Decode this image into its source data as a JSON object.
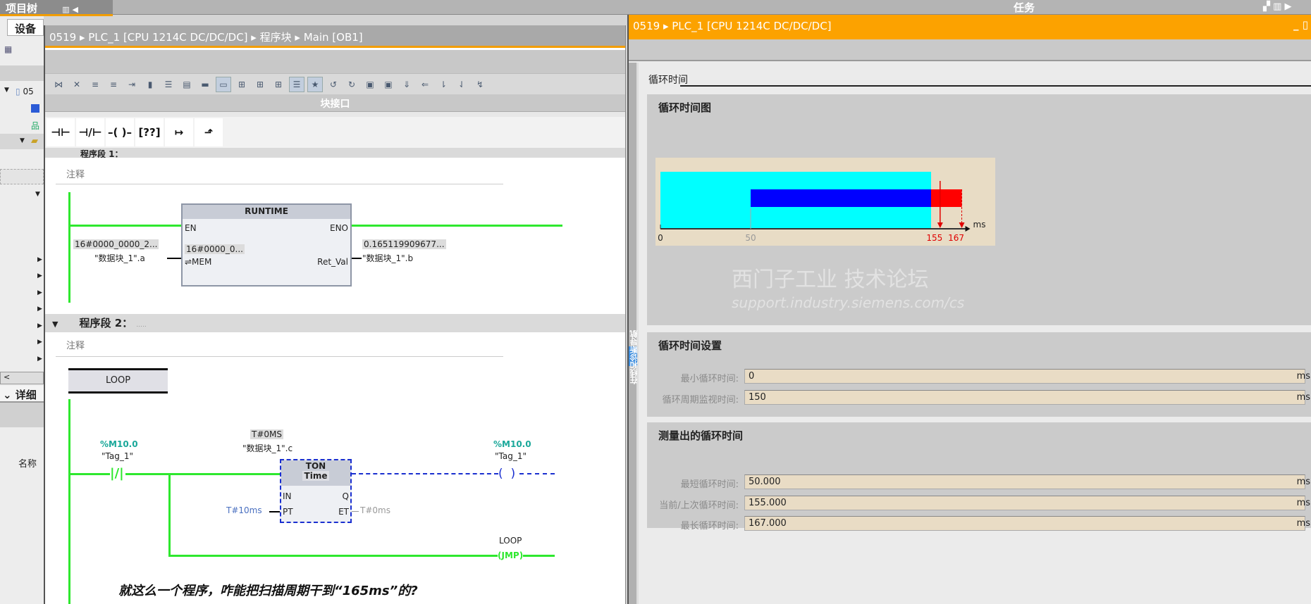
{
  "top": {
    "project_tree": "项目树",
    "tasks": "任务"
  },
  "left_panel": {
    "tab_devices": "设备",
    "project_item": "05",
    "details": "详细",
    "col_name": "名称"
  },
  "editor": {
    "breadcrumb": [
      "0519",
      "PLC_1 [CPU 1214C DC/DC/DC]",
      "程序块",
      "Main [OB1]"
    ],
    "block_interface": "块接口",
    "toolbar_icons": [
      "network-insert-icon",
      "network-delete-icon",
      "rung-insert-icon",
      "rung-delete-icon",
      "open-all-icon",
      "absolute-address-icon",
      "favorites-icon",
      "list-icon",
      "block-icon",
      "comment-icon",
      "go-to-error-icon",
      "prev-error-icon",
      "next-error-icon",
      "network-comments-icon",
      "favorites-star-icon",
      "monitor-icon",
      "monitor-off-icon",
      "snapshot-icon",
      "load-icon",
      "compare-icon",
      "call-icon",
      "call-up-icon",
      "call-down-icon",
      "monitoring-on-icon"
    ],
    "ladder_elements": [
      {
        "icon": "normally-open-contact-icon",
        "glyph": "⊣⊢"
      },
      {
        "icon": "normally-closed-contact-icon",
        "glyph": "⊣/⊢"
      },
      {
        "icon": "coil-icon",
        "glyph": "–( )–"
      },
      {
        "icon": "empty-box-icon",
        "glyph": "[??]"
      },
      {
        "icon": "open-branch-icon",
        "glyph": "↦"
      },
      {
        "icon": "close-branch-icon",
        "glyph": "⬏"
      }
    ],
    "network1": {
      "title": "程序段 1：",
      "comment": "注释",
      "block_name": "RUNTIME",
      "pin_en": "EN",
      "pin_eno": "ENO",
      "pin_mem": "⇌MEM",
      "pin_ret": "Ret_Val",
      "mem_value_outside": "16#0000_0000_2...",
      "mem_operand": "\"数据块_1\".a",
      "mem_value_inside": "16#0000_0...",
      "ret_value": "0.165119909677...",
      "ret_operand": "\"数据块_1\".b"
    },
    "network2": {
      "title": "程序段 2：",
      "dots": ".....",
      "comment": "注释",
      "label": "LOOP",
      "contact_addr": "%M10.0",
      "contact_tag": "\"Tag_1\"",
      "timer_value": "T#0MS",
      "timer_instance": "\"数据块_1\".c",
      "timer_type": "TON",
      "timer_subtype": "Time",
      "pin_in": "IN",
      "pin_pt": "PT",
      "pin_q": "Q",
      "pin_et": "ET",
      "pt_value": "T#10ms",
      "et_value": "T#0ms",
      "coil_addr": "%M10.0",
      "coil_tag": "\"Tag_1\"",
      "jump_label": "LOOP",
      "jump_instr": "JMP"
    },
    "question": "就这么一个程序，咋能把扫描周期干到“165ms”的?"
  },
  "diagnostics": {
    "breadcrumb": [
      "0519",
      "PLC_1 [CPU 1214C DC/DC/DC]"
    ],
    "side_tab": "在线和诊断导航",
    "section_label": "循环时间",
    "chart_title": "循环时间图",
    "settings_title": "循环时间设置",
    "measured_title": "测量出的循环时间",
    "settings": [
      {
        "label": "最小循环时间:",
        "value": "0",
        "unit": "ms"
      },
      {
        "label": "循环周期监视时间:",
        "value": "150",
        "unit": "ms"
      }
    ],
    "measured": [
      {
        "label": "最短循环时间:",
        "value": "50.000",
        "unit": "ms"
      },
      {
        "label": "当前/上次循环时间:",
        "value": "155.000",
        "unit": "ms"
      },
      {
        "label": "最长循环时间:",
        "value": "167.000",
        "unit": "ms"
      }
    ]
  },
  "chart_data": {
    "type": "bar",
    "unit": "ms",
    "ticks": [
      {
        "value": 0,
        "label": "0"
      },
      {
        "value": 50,
        "label": "50"
      },
      {
        "value": 155,
        "label": "155"
      },
      {
        "value": 167,
        "label": "167"
      }
    ],
    "monitor_range": [
      0,
      150
    ],
    "min_to_monitor": [
      50,
      150
    ],
    "overrun": [
      150,
      167
    ],
    "current_marker": 155,
    "max_marker": 167,
    "colors": {
      "monitor": "#00ffff",
      "range": "#0000ff",
      "overrun": "#ff0000",
      "background": "#e8dcc5",
      "marker": "#e00000"
    }
  },
  "watermark": {
    "line1": "西门子工业 技术论坛",
    "line2": "support.industry.siemens.com/cs"
  }
}
